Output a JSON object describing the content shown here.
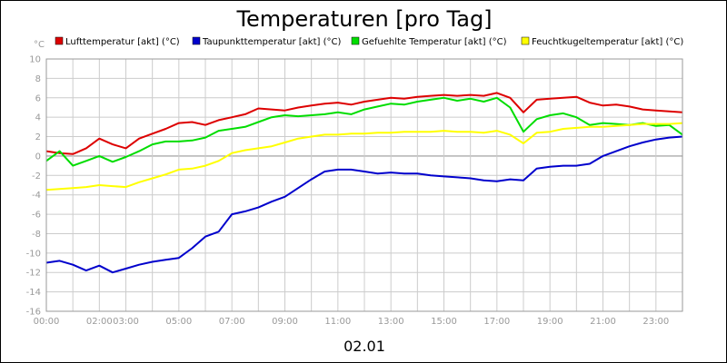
{
  "chart_data": {
    "type": "line",
    "title": "Temperaturen [pro Tag]",
    "date_label": "02.01",
    "y_unit": "°C",
    "xlabel": "",
    "ylabel": "",
    "ylim": [
      -16,
      10
    ],
    "y_ticks": [
      10,
      8,
      6,
      4,
      2,
      0,
      -2,
      -4,
      -6,
      -8,
      -10,
      -12,
      -14,
      -16
    ],
    "x_range_hours": [
      0,
      24
    ],
    "x_ticks": [
      {
        "label": "00:00",
        "hour": 0
      },
      {
        "label": "02:00",
        "hour": 2
      },
      {
        "label": "03:00",
        "hour": 3
      },
      {
        "label": "05:00",
        "hour": 5
      },
      {
        "label": "07:00",
        "hour": 7
      },
      {
        "label": "09:00",
        "hour": 9
      },
      {
        "label": "11:00",
        "hour": 11
      },
      {
        "label": "13:00",
        "hour": 13
      },
      {
        "label": "15:00",
        "hour": 15
      },
      {
        "label": "17:00",
        "hour": 17
      },
      {
        "label": "19:00",
        "hour": 19
      },
      {
        "label": "21:00",
        "hour": 21
      },
      {
        "label": "23:00",
        "hour": 23
      }
    ],
    "grid": true,
    "legend_position": "top",
    "zero_line_color": "#999999",
    "grid_color": "#cccccc",
    "series": [
      {
        "name": "Lufttemperatur [akt] (°C)",
        "color": "#dd0000",
        "x": [
          0,
          0.5,
          1,
          1.5,
          2,
          2.5,
          3,
          3.5,
          4,
          4.5,
          5,
          5.5,
          6,
          6.5,
          7,
          7.5,
          8,
          8.5,
          9,
          9.5,
          10,
          10.5,
          11,
          11.5,
          12,
          12.5,
          13,
          13.5,
          14,
          14.5,
          15,
          15.5,
          16,
          16.5,
          17,
          17.5,
          18,
          18.5,
          19,
          19.5,
          20,
          20.5,
          21,
          21.5,
          22,
          22.5,
          23,
          23.5,
          24
        ],
        "y": [
          0.5,
          0.3,
          0.2,
          0.8,
          1.8,
          1.2,
          0.8,
          1.8,
          2.3,
          2.8,
          3.4,
          3.5,
          3.2,
          3.7,
          4.0,
          4.3,
          4.9,
          4.8,
          4.7,
          5.0,
          5.2,
          5.4,
          5.5,
          5.3,
          5.6,
          5.8,
          6.0,
          5.9,
          6.1,
          6.2,
          6.3,
          6.2,
          6.3,
          6.2,
          6.5,
          6.0,
          4.5,
          5.8,
          5.9,
          6.0,
          6.1,
          5.5,
          5.2,
          5.3,
          5.1,
          4.8,
          4.7,
          4.6,
          4.5
        ]
      },
      {
        "name": "Taupunkttemperatur [akt] (°C)",
        "color": "#0000cc",
        "x": [
          0,
          0.5,
          1,
          1.5,
          2,
          2.5,
          3,
          3.5,
          4,
          4.5,
          5,
          5.5,
          6,
          6.5,
          7,
          7.5,
          8,
          8.5,
          9,
          9.5,
          10,
          10.5,
          11,
          11.5,
          12,
          12.5,
          13,
          13.5,
          14,
          14.5,
          15,
          15.5,
          16,
          16.5,
          17,
          17.5,
          18,
          18.5,
          19,
          19.5,
          20,
          20.5,
          21,
          21.5,
          22,
          22.5,
          23,
          23.5,
          24
        ],
        "y": [
          -11.0,
          -10.8,
          -11.2,
          -11.8,
          -11.3,
          -12.0,
          -11.6,
          -11.2,
          -10.9,
          -10.7,
          -10.5,
          -9.5,
          -8.3,
          -7.8,
          -6.0,
          -5.7,
          -5.3,
          -4.7,
          -4.2,
          -3.3,
          -2.4,
          -1.6,
          -1.4,
          -1.4,
          -1.6,
          -1.8,
          -1.7,
          -1.8,
          -1.8,
          -2.0,
          -2.1,
          -2.2,
          -2.3,
          -2.5,
          -2.6,
          -2.4,
          -2.5,
          -1.3,
          -1.1,
          -1.0,
          -1.0,
          -0.8,
          0.0,
          0.5,
          1.0,
          1.4,
          1.7,
          1.9,
          2.0
        ]
      },
      {
        "name": "Gefuehlte Temperatur [akt] (°C)",
        "color": "#00dd00",
        "x": [
          0,
          0.5,
          1,
          1.5,
          2,
          2.5,
          3,
          3.5,
          4,
          4.5,
          5,
          5.5,
          6,
          6.5,
          7,
          7.5,
          8,
          8.5,
          9,
          9.5,
          10,
          10.5,
          11,
          11.5,
          12,
          12.5,
          13,
          13.5,
          14,
          14.5,
          15,
          15.5,
          16,
          16.5,
          17,
          17.5,
          18,
          18.5,
          19,
          19.5,
          20,
          20.5,
          21,
          21.5,
          22,
          22.5,
          23,
          23.5,
          24
        ],
        "y": [
          -0.5,
          0.5,
          -1.0,
          -0.5,
          0.0,
          -0.6,
          -0.1,
          0.5,
          1.2,
          1.5,
          1.5,
          1.6,
          1.9,
          2.6,
          2.8,
          3.0,
          3.5,
          4.0,
          4.2,
          4.1,
          4.2,
          4.3,
          4.5,
          4.3,
          4.8,
          5.1,
          5.4,
          5.3,
          5.6,
          5.8,
          6.0,
          5.7,
          5.9,
          5.6,
          6.0,
          5.0,
          2.5,
          3.8,
          4.2,
          4.4,
          4.0,
          3.2,
          3.4,
          3.3,
          3.2,
          3.4,
          3.1,
          3.2,
          2.2
        ]
      },
      {
        "name": "Feuchtkugeltemperatur [akt] (°C)",
        "color": "#ffff00",
        "x": [
          0,
          0.5,
          1,
          1.5,
          2,
          2.5,
          3,
          3.5,
          4,
          4.5,
          5,
          5.5,
          6,
          6.5,
          7,
          7.5,
          8,
          8.5,
          9,
          9.5,
          10,
          10.5,
          11,
          11.5,
          12,
          12.5,
          13,
          13.5,
          14,
          14.5,
          15,
          15.5,
          16,
          16.5,
          17,
          17.5,
          18,
          18.5,
          19,
          19.5,
          20,
          20.5,
          21,
          21.5,
          22,
          22.5,
          23,
          23.5,
          24
        ],
        "y": [
          -3.5,
          -3.4,
          -3.3,
          -3.2,
          -3.0,
          -3.1,
          -3.2,
          -2.7,
          -2.3,
          -1.9,
          -1.4,
          -1.3,
          -1.0,
          -0.5,
          0.3,
          0.6,
          0.8,
          1.0,
          1.4,
          1.8,
          2.0,
          2.2,
          2.2,
          2.3,
          2.3,
          2.4,
          2.4,
          2.5,
          2.5,
          2.5,
          2.6,
          2.5,
          2.5,
          2.4,
          2.6,
          2.2,
          1.3,
          2.4,
          2.5,
          2.8,
          2.9,
          3.0,
          3.0,
          3.1,
          3.2,
          3.3,
          3.3,
          3.3,
          3.4
        ]
      }
    ]
  }
}
